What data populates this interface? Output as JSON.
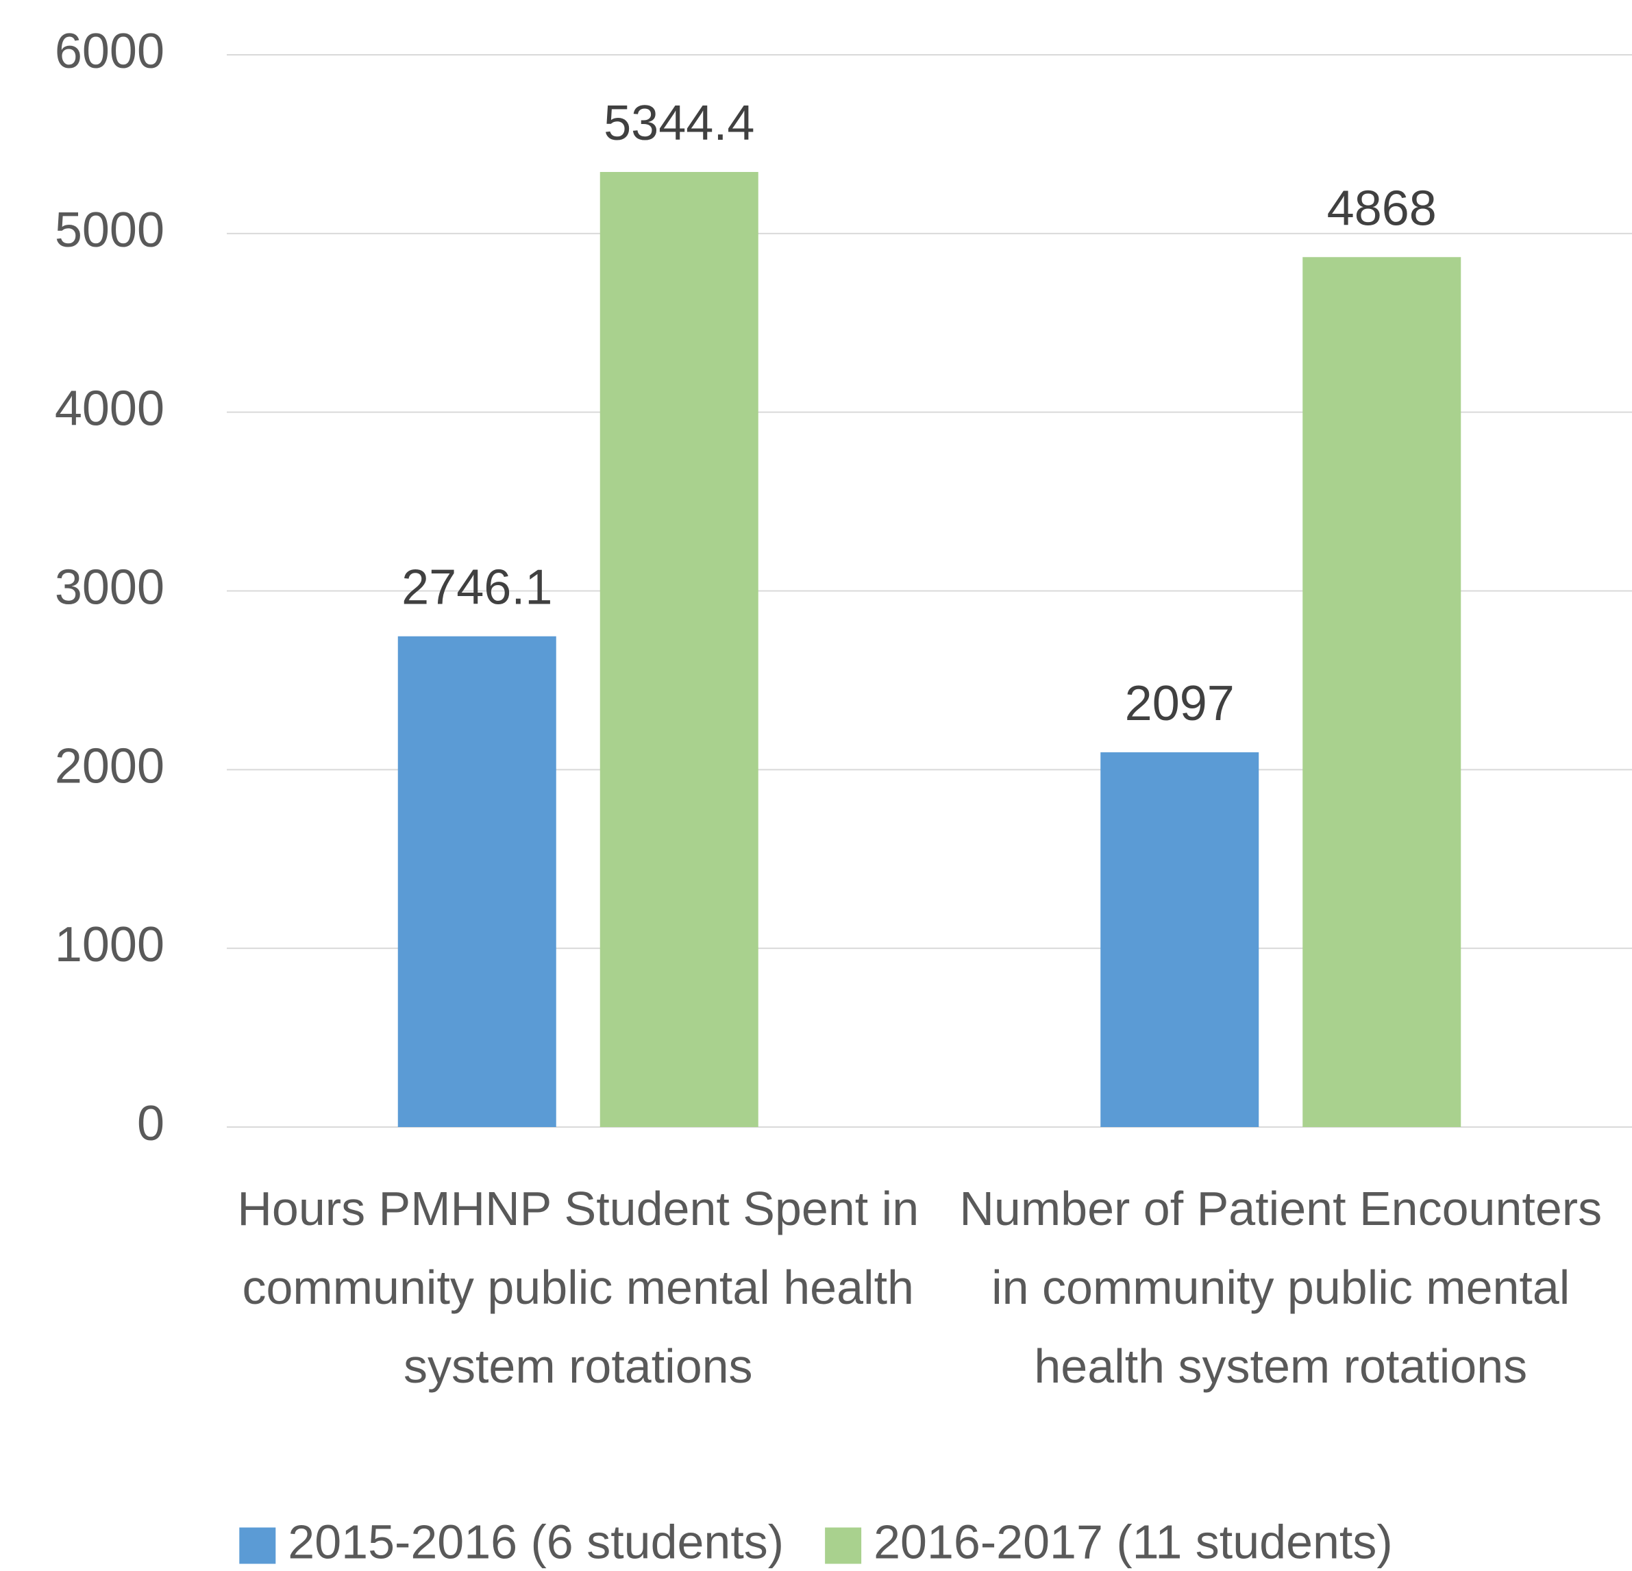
{
  "chart_data": {
    "type": "bar",
    "categories": [
      "Hours PMHNP Student Spent in community public mental health system rotations",
      "Number of Patient Encounters in community public mental health system rotations"
    ],
    "series": [
      {
        "name": "2015-2016 (6 students)",
        "color": "#5b9bd5",
        "values": [
          2746.1,
          2097
        ]
      },
      {
        "name": "2016-2017 (11 students)",
        "color": "#a9d18e",
        "values": [
          5344.4,
          4868
        ]
      }
    ],
    "ylim": [
      0,
      6000
    ],
    "yticks": [
      0,
      1000,
      2000,
      3000,
      4000,
      5000,
      6000
    ],
    "grid": true,
    "legend": "bottom"
  }
}
